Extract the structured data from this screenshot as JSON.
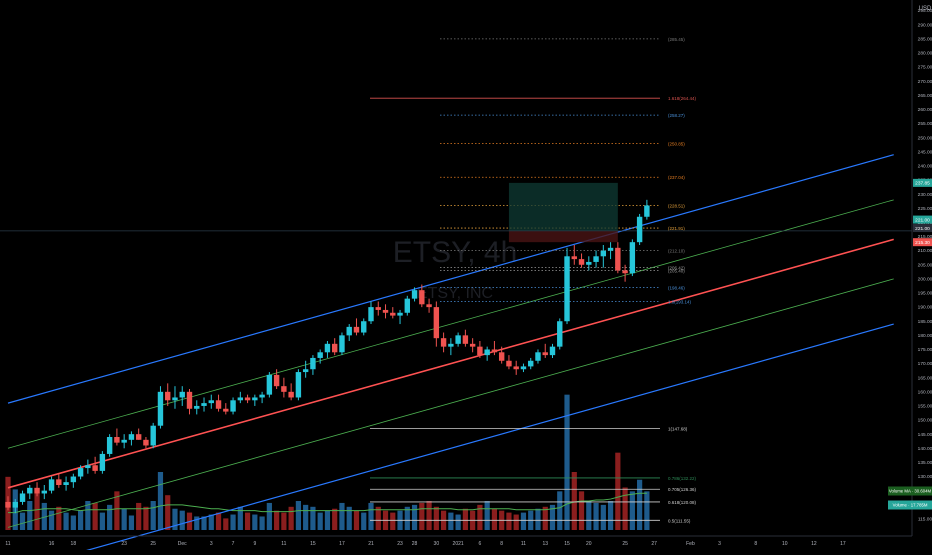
{
  "chart_data": {
    "type": "candlestick",
    "watermark": {
      "symbol": "ETSY, 4h",
      "name": "ETSY, INC"
    },
    "currency": "USD",
    "price_axis": {
      "range": [
        110,
        297
      ],
      "ticks": [
        115,
        120,
        125,
        130,
        135,
        140,
        145,
        150,
        155,
        160,
        165,
        170,
        175,
        180,
        185,
        190,
        195,
        200,
        205,
        210,
        215,
        220,
        225,
        230,
        235,
        240,
        245,
        250,
        255,
        260,
        265,
        270,
        275,
        280,
        285,
        290,
        295
      ]
    },
    "time_axis": {
      "labels": [
        {
          "t": 0,
          "label": "11"
        },
        {
          "t": 6,
          "label": "16"
        },
        {
          "t": 9,
          "label": "18"
        },
        {
          "t": 16,
          "label": "23"
        },
        {
          "t": 20,
          "label": "25"
        },
        {
          "t": 24,
          "label": "Dec"
        },
        {
          "t": 28,
          "label": "3"
        },
        {
          "t": 31,
          "label": "7"
        },
        {
          "t": 34,
          "label": "9"
        },
        {
          "t": 38,
          "label": "11"
        },
        {
          "t": 42,
          "label": "15"
        },
        {
          "t": 46,
          "label": "17"
        },
        {
          "t": 50,
          "label": "21"
        },
        {
          "t": 54,
          "label": "23"
        },
        {
          "t": 56,
          "label": "28"
        },
        {
          "t": 59,
          "label": "30"
        },
        {
          "t": 62,
          "label": "2021"
        },
        {
          "t": 65,
          "label": "6"
        },
        {
          "t": 68,
          "label": "8"
        },
        {
          "t": 71,
          "label": "11"
        },
        {
          "t": 74,
          "label": "13"
        },
        {
          "t": 77,
          "label": "15"
        },
        {
          "t": 80,
          "label": "20"
        },
        {
          "t": 85,
          "label": "25"
        },
        {
          "t": 89,
          "label": "27"
        },
        {
          "t": 94,
          "label": "Feb"
        },
        {
          "t": 98,
          "label": "3"
        },
        {
          "t": 103,
          "label": "8"
        },
        {
          "t": 107,
          "label": "10"
        },
        {
          "t": 111,
          "label": "12"
        },
        {
          "t": 115,
          "label": "17"
        }
      ]
    },
    "candles": [
      [
        0,
        121,
        123,
        118,
        119
      ],
      [
        1,
        119,
        122,
        117,
        121
      ],
      [
        2,
        121,
        125,
        120,
        124
      ],
      [
        3,
        124,
        127,
        122,
        126
      ],
      [
        4,
        126,
        128,
        123,
        124
      ],
      [
        5,
        124,
        127,
        122,
        125
      ],
      [
        6,
        125,
        130,
        124,
        129
      ],
      [
        7,
        129,
        131,
        126,
        127
      ],
      [
        8,
        127,
        130,
        125,
        128
      ],
      [
        9,
        128,
        131,
        126,
        130
      ],
      [
        10,
        130,
        134,
        129,
        133
      ],
      [
        11,
        133,
        136,
        131,
        134
      ],
      [
        12,
        134,
        137,
        131,
        132
      ],
      [
        13,
        132,
        139,
        131,
        138
      ],
      [
        14,
        138,
        145,
        137,
        144
      ],
      [
        15,
        144,
        147,
        141,
        142
      ],
      [
        16,
        142,
        145,
        140,
        143
      ],
      [
        17,
        143,
        146,
        141,
        145
      ],
      [
        18,
        145,
        147,
        143,
        143
      ],
      [
        19,
        143,
        144,
        140,
        141
      ],
      [
        20,
        141,
        149,
        140,
        148
      ],
      [
        21,
        148,
        162,
        147,
        160
      ],
      [
        22,
        160,
        163,
        155,
        157
      ],
      [
        23,
        157,
        162,
        154,
        158
      ],
      [
        24,
        158,
        162,
        155,
        160
      ],
      [
        25,
        160,
        161,
        152,
        154
      ],
      [
        26,
        154,
        157,
        152,
        155
      ],
      [
        27,
        155,
        158,
        153,
        156
      ],
      [
        28,
        156,
        159,
        154,
        157
      ],
      [
        29,
        157,
        159,
        153,
        154
      ],
      [
        30,
        154,
        156,
        152,
        153
      ],
      [
        31,
        153,
        158,
        152,
        157
      ],
      [
        32,
        157,
        160,
        156,
        158
      ],
      [
        33,
        158,
        159,
        156,
        157
      ],
      [
        34,
        157,
        159,
        155,
        158
      ],
      [
        35,
        158,
        160,
        156,
        159
      ],
      [
        36,
        159,
        167,
        158,
        166
      ],
      [
        37,
        166,
        168,
        161,
        162
      ],
      [
        38,
        162,
        165,
        158,
        160
      ],
      [
        39,
        160,
        163,
        157,
        158
      ],
      [
        40,
        158,
        168,
        157,
        167
      ],
      [
        41,
        167,
        171,
        165,
        168
      ],
      [
        42,
        168,
        173,
        166,
        172
      ],
      [
        43,
        172,
        175,
        170,
        174
      ],
      [
        44,
        174,
        178,
        172,
        177
      ],
      [
        45,
        177,
        179,
        173,
        174
      ],
      [
        46,
        174,
        181,
        173,
        180
      ],
      [
        47,
        180,
        184,
        178,
        183
      ],
      [
        48,
        183,
        186,
        180,
        181
      ],
      [
        49,
        181,
        186,
        180,
        185
      ],
      [
        50,
        185,
        192,
        184,
        190
      ],
      [
        51,
        190,
        192,
        187,
        189
      ],
      [
        52,
        189,
        191,
        186,
        188
      ],
      [
        53,
        188,
        190,
        186,
        187
      ],
      [
        54,
        187,
        189,
        184,
        188
      ],
      [
        55,
        188,
        194,
        187,
        193
      ],
      [
        56,
        193,
        197,
        192,
        196
      ],
      [
        57,
        196,
        198,
        190,
        191
      ],
      [
        58,
        191,
        193,
        188,
        190
      ],
      [
        59,
        190,
        192,
        176,
        179
      ],
      [
        60,
        179,
        181,
        174,
        176
      ],
      [
        61,
        176,
        179,
        173,
        177
      ],
      [
        62,
        177,
        181,
        176,
        180
      ],
      [
        63,
        180,
        182,
        176,
        177
      ],
      [
        64,
        177,
        179,
        174,
        176
      ],
      [
        65,
        176,
        178,
        172,
        173
      ],
      [
        66,
        173,
        176,
        171,
        175
      ],
      [
        67,
        175,
        178,
        173,
        174
      ],
      [
        68,
        174,
        176,
        170,
        171
      ],
      [
        69,
        171,
        173,
        168,
        169
      ],
      [
        70,
        169,
        171,
        166,
        168
      ],
      [
        71,
        168,
        170,
        167,
        169
      ],
      [
        72,
        169,
        172,
        168,
        171
      ],
      [
        73,
        171,
        175,
        170,
        174
      ],
      [
        74,
        174,
        177,
        172,
        173
      ],
      [
        75,
        173,
        177,
        172,
        176
      ],
      [
        76,
        176,
        186,
        175,
        185
      ],
      [
        77,
        185,
        211,
        184,
        208
      ],
      [
        78,
        208,
        212,
        205,
        207
      ],
      [
        79,
        207,
        209,
        204,
        205
      ],
      [
        80,
        205,
        208,
        203,
        206
      ],
      [
        81,
        206,
        210,
        204,
        208
      ],
      [
        82,
        208,
        212,
        204,
        210
      ],
      [
        83,
        210,
        213,
        207,
        211
      ],
      [
        84,
        211,
        213,
        202,
        203
      ],
      [
        85,
        203,
        205,
        199,
        202
      ],
      [
        86,
        202,
        214,
        201,
        213
      ],
      [
        87,
        213,
        223,
        212,
        222
      ],
      [
        88,
        222,
        228,
        221,
        226
      ]
    ],
    "volume": [
      55,
      42,
      18,
      30,
      38,
      28,
      20,
      24,
      18,
      15,
      20,
      30,
      28,
      18,
      26,
      40,
      22,
      15,
      28,
      24,
      30,
      60,
      36,
      22,
      20,
      18,
      14,
      14,
      16,
      18,
      12,
      16,
      24,
      18,
      16,
      14,
      28,
      20,
      18,
      24,
      30,
      26,
      24,
      18,
      20,
      22,
      28,
      24,
      20,
      18,
      28,
      24,
      20,
      18,
      20,
      24,
      26,
      28,
      30,
      24,
      20,
      18,
      16,
      22,
      20,
      26,
      30,
      22,
      20,
      18,
      16,
      18,
      20,
      22,
      24,
      26,
      40,
      140,
      60,
      40,
      30,
      28,
      26,
      30,
      80,
      44,
      40,
      52,
      40
    ],
    "volume_ma": [
      18,
      18,
      20,
      20,
      21,
      22,
      22,
      22,
      22,
      21,
      20,
      21,
      21,
      21,
      21,
      22,
      22,
      22,
      22,
      22,
      23,
      25,
      26,
      26,
      26,
      25,
      24,
      23,
      22,
      22,
      21,
      20,
      20,
      20,
      20,
      19,
      19,
      19,
      19,
      19,
      20,
      20,
      20,
      20,
      20,
      20,
      20,
      20,
      20,
      20,
      21,
      21,
      21,
      21,
      21,
      21,
      21,
      22,
      22,
      22,
      22,
      22,
      21,
      21,
      21,
      22,
      22,
      22,
      22,
      22,
      21,
      21,
      21,
      21,
      21,
      22,
      23,
      27,
      29,
      30,
      30,
      31,
      31,
      32,
      34,
      36,
      37,
      38,
      38
    ],
    "regression_channel": {
      "t1": 0,
      "t2": 122,
      "mid": [
        126,
        214
      ],
      "inner_offset": 14,
      "outer_offset": 30
    },
    "fib_upper": [
      {
        "price": 285,
        "label": "(285.45)",
        "color": "#7a7a7a"
      },
      {
        "price": 264,
        "label": "1.618(264.44)",
        "color": "#d9534f"
      },
      {
        "price": 258,
        "label": "(258.27)",
        "color": "#4a90d9"
      },
      {
        "price": 248,
        "label": "(250.85)",
        "color": "#e67e22"
      },
      {
        "price": 236,
        "label": "(237.04)",
        "color": "#e67e22"
      },
      {
        "price": 226,
        "label": "(228.51)",
        "color": "#e6a23c"
      },
      {
        "price": 218,
        "label": "(221.91)",
        "color": "#e6a23c"
      },
      {
        "price": 210,
        "label": "(212.10)",
        "color": "#7a7a7a"
      },
      {
        "price": 204,
        "label": "(206.42)",
        "color": "#9a9a9a"
      },
      {
        "price": 203,
        "label": "(205.40)",
        "color": "#9a9a9a"
      },
      {
        "price": 197,
        "label": "(198.46)",
        "color": "#4a90d9"
      },
      {
        "price": 192,
        "label": "1.0(193.14)",
        "color": "#4a90d9"
      }
    ],
    "fib_lower": [
      {
        "price": 147,
        "label": "1(147.68)",
        "color": "#d0d0d0"
      },
      {
        "price": 129.5,
        "label": "0.786(132.22)",
        "color": "#2e8b57"
      },
      {
        "price": 125.5,
        "label": "0.705(126.36)",
        "color": "#d0d0d0"
      },
      {
        "price": 121,
        "label": "0.618(120.08)",
        "color": "#d0d0d0"
      },
      {
        "price": 114.5,
        "label": "0.5(111.55)",
        "color": "#d0d0d0"
      }
    ],
    "position_box": {
      "t1": 69,
      "t2": 84,
      "entry": 217,
      "target": 234,
      "stop": 213
    },
    "price_tags": [
      {
        "price": 234,
        "label": "237.85",
        "color": "#26a69a"
      },
      {
        "price": 221,
        "label": "221.00",
        "color": "#26a69a"
      },
      {
        "price": 218,
        "label": "221.00",
        "color": "#2a2e39"
      },
      {
        "price": 213,
        "label": "215.30",
        "color": "#ef5350"
      }
    ],
    "indicator_tags": [
      {
        "label": "Volume MA · 30.604M",
        "color": "#1b5e20"
      },
      {
        "label": "Volume · 17.785M",
        "color": "#26a69a"
      }
    ],
    "colors": {
      "up": "#26c6da",
      "down": "#ef5350",
      "channel_outer": "#2979ff",
      "channel_inner": "#4caf50",
      "channel_mid": "#ff5252",
      "volume_up": "#1e5b8c",
      "volume_down": "#8b1e1e",
      "volume_ma": "#4caf50"
    }
  }
}
